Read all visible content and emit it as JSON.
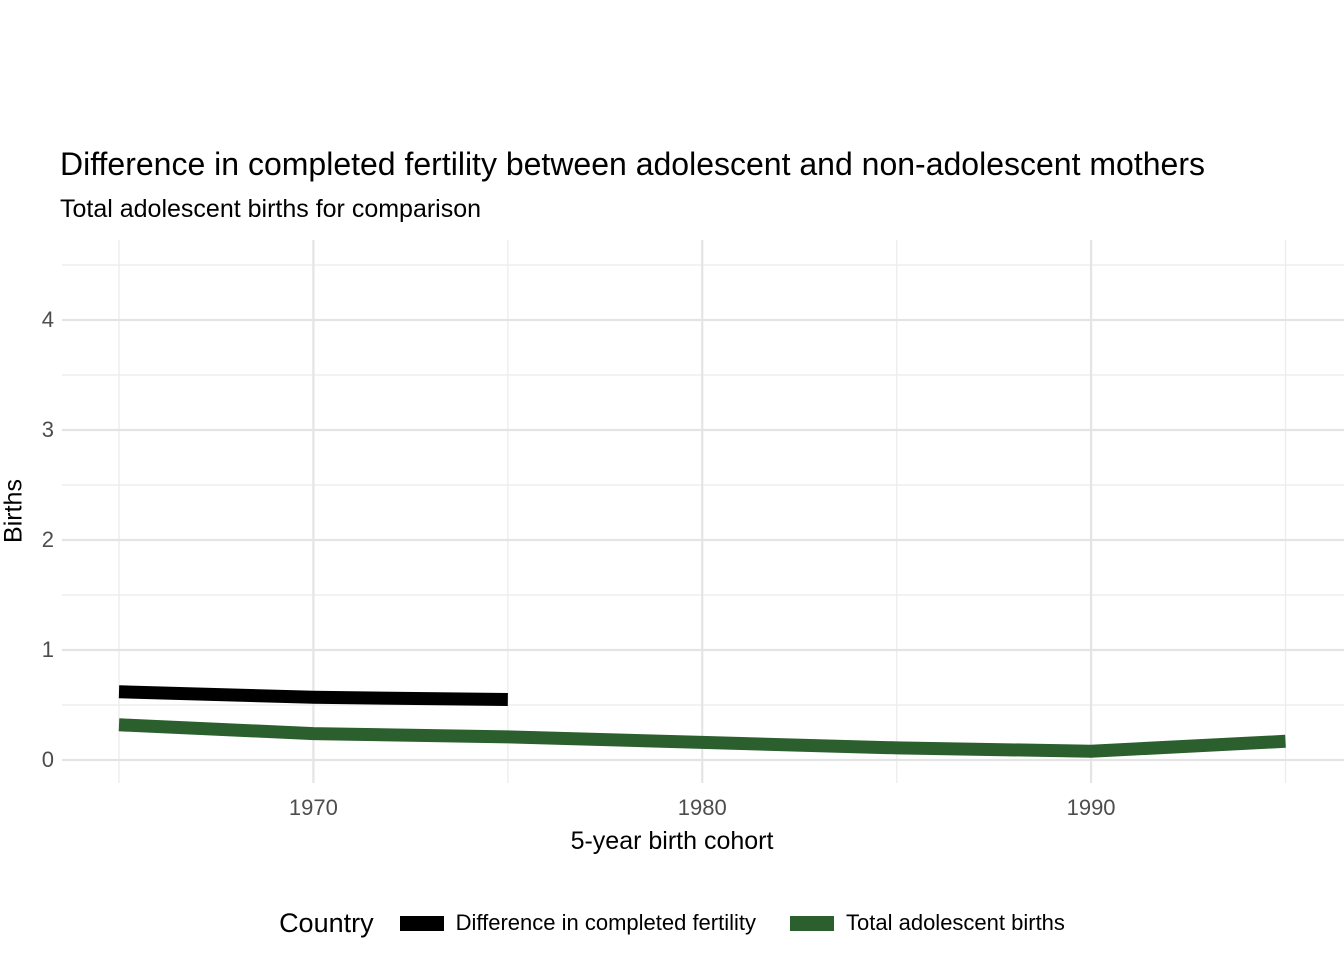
{
  "title": "Difference in completed fertility between adolescent and non-adolescent mothers",
  "subtitle": "Total adolescent births for comparison",
  "chart_data": {
    "type": "line",
    "title": "Difference in completed fertility between adolescent and non-adolescent mothers",
    "subtitle": "Total adolescent births for comparison",
    "xlabel": "5-year birth cohort",
    "ylabel": "Births",
    "x_ticks": [
      1970,
      1980,
      1990
    ],
    "x_minor_ticks": [
      1965,
      1975,
      1985,
      1995
    ],
    "y_ticks": [
      0,
      1,
      2,
      3,
      4
    ],
    "y_minor_ticks": [
      0.5,
      1.5,
      2.5,
      3.5,
      4.5
    ],
    "xlim": [
      1963.5,
      1996.5
    ],
    "ylim": [
      -0.2,
      4.73
    ],
    "grid": "major+minor",
    "legend_position": "bottom",
    "legend_title": "Country",
    "series": [
      {
        "name": "Difference in completed fertility",
        "color": "#000000",
        "x": [
          1965,
          1970,
          1975
        ],
        "values": [
          0.62,
          0.57,
          0.55
        ]
      },
      {
        "name": "Total adolescent births",
        "color": "#2B5F2E",
        "x": [
          1965,
          1970,
          1975,
          1980,
          1985,
          1990,
          1995
        ],
        "values": [
          0.32,
          0.24,
          0.21,
          0.16,
          0.11,
          0.08,
          0.17
        ]
      }
    ]
  },
  "colors": {
    "background": "#ffffff",
    "grid_major": "#e4e4e4",
    "grid_minor": "#ededed",
    "tick_label": "#4d4d4d",
    "series_black": "#000000",
    "series_green": "#2B5F2E"
  }
}
